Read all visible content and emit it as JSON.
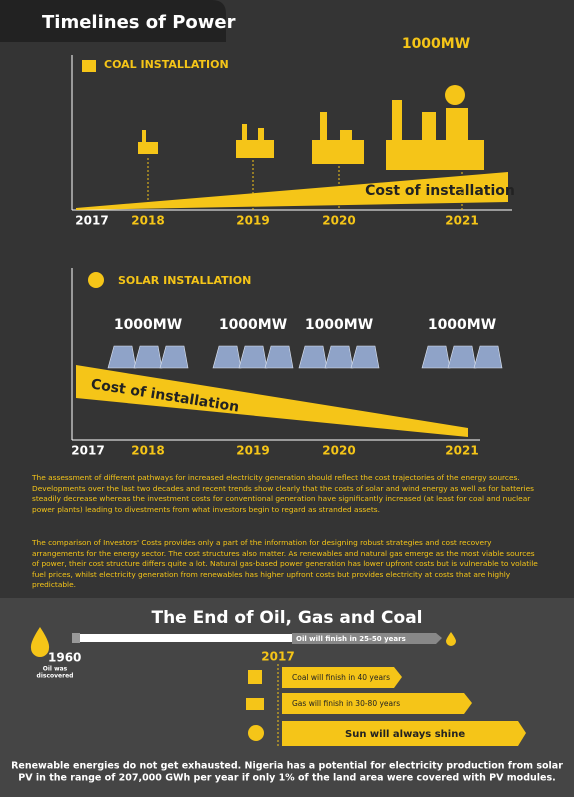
{
  "title": "Timelines of Power",
  "coal": {
    "label": "COAL INSTALLATION",
    "capacity": "1000MW",
    "cost_label": "Cost of installation",
    "years": [
      "2017",
      "2018",
      "2019",
      "2020",
      "2021"
    ]
  },
  "solar": {
    "label": "SOLAR INSTALLATION",
    "capacities": [
      "1000MW",
      "1000MW",
      "1000MW",
      "1000MW"
    ],
    "cost_label": "Cost of installation",
    "years": [
      "2017",
      "2018",
      "2019",
      "2020",
      "2021"
    ]
  },
  "paragraphs": [
    "The assessment of different pathways for increased electricity generation should reflect the cost trajectories of the energy sources. Developments over the last two decades and recent trends show clearly that the costs of solar and wind energy as well as for batteries steadily decrease whereas the investment costs for conventional generation have significantly increased (at least for coal and nuclear power plants) leading to divestments from what investors begin to regard as stranded assets.",
    "The comparison of Investors' Costs provides only a part of the information for designing robust strategies and cost recovery arrangements for the energy sector. The cost structures also matter. As renewables and natural gas emerge as the most viable sources of power, their cost structure differs quite a lot. Natural gas-based power generation has lower upfront costs but is vulnerable to volatile fuel prices, whilst electricity generation from renewables has higher upfront costs but provides electricity at costs that are highly predictable."
  ],
  "end": {
    "title": "The End of Oil, Gas and Coal",
    "start_year": "1960",
    "start_note": [
      "Oil was",
      "discovered"
    ],
    "now_year": "2017",
    "oil": "Oil will finish in 25-50 years",
    "coal": "Coal will finish in 40 years",
    "gas": "Gas will finish in 30-80 years",
    "sun": "Sun will always shine"
  },
  "footer": [
    "Renewable energies do not get exhausted. Nigeria has a potential for electricity  production from solar",
    "PV in the range of 207,000 GWh per year if only 1% of the land area were covered with PV  modules."
  ]
}
